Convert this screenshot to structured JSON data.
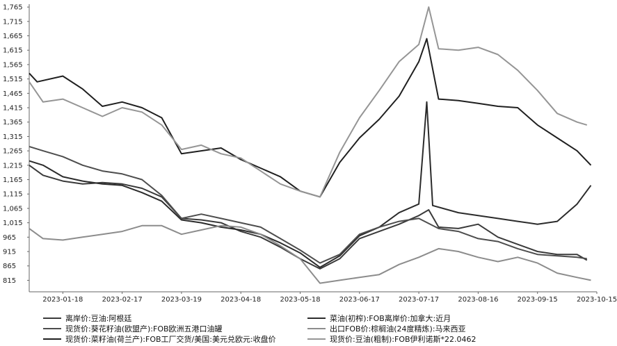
{
  "chart_data": {
    "type": "line",
    "title": "",
    "xlabel": "",
    "ylabel": "",
    "ylim": [
      775,
      1775
    ],
    "yticks": [
      815,
      865,
      915,
      965,
      1015,
      1065,
      1115,
      1165,
      1215,
      1265,
      1315,
      1365,
      1415,
      1465,
      1515,
      1565,
      1615,
      1665,
      1715,
      1765
    ],
    "ytick_labels": [
      "815",
      "865",
      "915",
      "965",
      "1,015",
      "1,065",
      "1,115",
      "1,165",
      "1,215",
      "1,265",
      "1,315",
      "1,365",
      "1,415",
      "1,465",
      "1,515",
      "1,565",
      "1,615",
      "1,665",
      "1,715",
      "1,765"
    ],
    "xlim": [
      "2023-01-01",
      "2023-10-15"
    ],
    "xticks": [
      "2023-01-18",
      "2023-02-17",
      "2023-03-19",
      "2023-04-18",
      "2023-05-18",
      "2023-06-17",
      "2023-07-17",
      "2023-08-16",
      "2023-09-15",
      "2023-10-15"
    ],
    "grid": false,
    "legend_position": "bottom",
    "series": [
      {
        "name": "离岸价:豆油:阿根廷",
        "color": "#3a3a3a",
        "points": [
          [
            "2023-01-01",
            1215
          ],
          [
            "2023-01-08",
            1180
          ],
          [
            "2023-01-18",
            1160
          ],
          [
            "2023-01-28",
            1150
          ],
          [
            "2023-02-07",
            1155
          ],
          [
            "2023-02-17",
            1150
          ],
          [
            "2023-02-27",
            1135
          ],
          [
            "2023-03-09",
            1105
          ],
          [
            "2023-03-19",
            1030
          ],
          [
            "2023-03-29",
            1025
          ],
          [
            "2023-04-08",
            1015
          ],
          [
            "2023-04-18",
            985
          ],
          [
            "2023-04-28",
            965
          ],
          [
            "2023-05-08",
            930
          ],
          [
            "2023-05-18",
            890
          ],
          [
            "2023-05-28",
            855
          ],
          [
            "2023-06-07",
            890
          ],
          [
            "2023-06-17",
            960
          ],
          [
            "2023-06-27",
            985
          ],
          [
            "2023-07-07",
            1010
          ],
          [
            "2023-07-17",
            1040
          ],
          [
            "2023-07-22",
            1060
          ],
          [
            "2023-07-27",
            1000
          ],
          [
            "2023-08-06",
            995
          ],
          [
            "2023-08-16",
            1010
          ],
          [
            "2023-08-26",
            965
          ],
          [
            "2023-09-05",
            940
          ],
          [
            "2023-09-15",
            915
          ],
          [
            "2023-09-25",
            905
          ],
          [
            "2023-10-05",
            905
          ],
          [
            "2023-10-10",
            885
          ]
        ]
      },
      {
        "name": "菜油(初榨):FOB离岸价:加拿大:近月",
        "color": "#2b2b2b",
        "points": [
          [
            "2023-01-01",
            1230
          ],
          [
            "2023-01-08",
            1215
          ],
          [
            "2023-01-18",
            1175
          ],
          [
            "2023-01-28",
            1160
          ],
          [
            "2023-02-07",
            1150
          ],
          [
            "2023-02-17",
            1145
          ],
          [
            "2023-02-27",
            1120
          ],
          [
            "2023-03-09",
            1090
          ],
          [
            "2023-03-19",
            1025
          ],
          [
            "2023-03-29",
            1015
          ],
          [
            "2023-04-08",
            1000
          ],
          [
            "2023-04-18",
            990
          ],
          [
            "2023-04-28",
            975
          ],
          [
            "2023-05-08",
            945
          ],
          [
            "2023-05-18",
            910
          ],
          [
            "2023-05-28",
            860
          ],
          [
            "2023-06-07",
            900
          ],
          [
            "2023-06-17",
            970
          ],
          [
            "2023-06-27",
            1000
          ],
          [
            "2023-07-07",
            1050
          ],
          [
            "2023-07-17",
            1080
          ],
          [
            "2023-07-21",
            1435
          ],
          [
            "2023-07-24",
            1075
          ],
          [
            "2023-08-06",
            1050
          ],
          [
            "2023-08-16",
            1040
          ],
          [
            "2023-08-26",
            1030
          ],
          [
            "2023-09-05",
            1020
          ],
          [
            "2023-09-15",
            1010
          ],
          [
            "2023-09-25",
            1020
          ],
          [
            "2023-10-05",
            1080
          ],
          [
            "2023-10-12",
            1145
          ]
        ]
      },
      {
        "name": "现货价:葵花籽油(欧盟产):FOB欧洲五港口油罐",
        "color": "#4d4d4d",
        "points": [
          [
            "2023-01-01",
            1280
          ],
          [
            "2023-01-08",
            1265
          ],
          [
            "2023-01-18",
            1245
          ],
          [
            "2023-01-28",
            1215
          ],
          [
            "2023-02-07",
            1195
          ],
          [
            "2023-02-17",
            1185
          ],
          [
            "2023-02-27",
            1165
          ],
          [
            "2023-03-09",
            1110
          ],
          [
            "2023-03-19",
            1030
          ],
          [
            "2023-03-29",
            1045
          ],
          [
            "2023-04-08",
            1030
          ],
          [
            "2023-04-18",
            1015
          ],
          [
            "2023-04-28",
            1000
          ],
          [
            "2023-05-08",
            960
          ],
          [
            "2023-05-18",
            920
          ],
          [
            "2023-05-28",
            875
          ],
          [
            "2023-06-07",
            905
          ],
          [
            "2023-06-17",
            975
          ],
          [
            "2023-06-27",
            1000
          ],
          [
            "2023-07-07",
            1020
          ],
          [
            "2023-07-17",
            1030
          ],
          [
            "2023-07-27",
            995
          ],
          [
            "2023-08-06",
            985
          ],
          [
            "2023-08-16",
            960
          ],
          [
            "2023-08-26",
            950
          ],
          [
            "2023-09-05",
            925
          ],
          [
            "2023-09-15",
            905
          ],
          [
            "2023-09-25",
            900
          ],
          [
            "2023-10-05",
            895
          ],
          [
            "2023-10-10",
            890
          ]
        ]
      },
      {
        "name": "出口FOB价:棕榈油(24度精炼):马来西亚",
        "color": "#8c8c8c",
        "points": [
          [
            "2023-01-01",
            995
          ],
          [
            "2023-01-08",
            960
          ],
          [
            "2023-01-18",
            955
          ],
          [
            "2023-01-28",
            965
          ],
          [
            "2023-02-07",
            975
          ],
          [
            "2023-02-17",
            985
          ],
          [
            "2023-02-27",
            1005
          ],
          [
            "2023-03-09",
            1005
          ],
          [
            "2023-03-19",
            975
          ],
          [
            "2023-03-29",
            990
          ],
          [
            "2023-04-08",
            1005
          ],
          [
            "2023-04-18",
            1000
          ],
          [
            "2023-04-28",
            975
          ],
          [
            "2023-05-08",
            935
          ],
          [
            "2023-05-18",
            890
          ],
          [
            "2023-05-28",
            805
          ],
          [
            "2023-06-07",
            815
          ],
          [
            "2023-06-17",
            825
          ],
          [
            "2023-06-27",
            835
          ],
          [
            "2023-07-07",
            870
          ],
          [
            "2023-07-17",
            895
          ],
          [
            "2023-07-27",
            925
          ],
          [
            "2023-08-06",
            915
          ],
          [
            "2023-08-16",
            895
          ],
          [
            "2023-08-26",
            880
          ],
          [
            "2023-09-05",
            895
          ],
          [
            "2023-09-15",
            875
          ],
          [
            "2023-09-25",
            840
          ],
          [
            "2023-10-05",
            825
          ],
          [
            "2023-10-12",
            815
          ]
        ]
      },
      {
        "name": "现货价:菜籽油(荷兰产):FOB工厂交货/美国:美元兑欧元:收盘价",
        "color": "#1f1f1f",
        "points": [
          [
            "2023-01-01",
            1535
          ],
          [
            "2023-01-05",
            1505
          ],
          [
            "2023-01-18",
            1525
          ],
          [
            "2023-01-28",
            1480
          ],
          [
            "2023-02-07",
            1420
          ],
          [
            "2023-02-17",
            1435
          ],
          [
            "2023-02-27",
            1415
          ],
          [
            "2023-03-09",
            1380
          ],
          [
            "2023-03-19",
            1255
          ],
          [
            "2023-03-29",
            1265
          ],
          [
            "2023-04-08",
            1275
          ],
          [
            "2023-04-18",
            1235
          ],
          [
            "2023-04-28",
            1205
          ],
          [
            "2023-05-08",
            1175
          ],
          [
            "2023-05-18",
            1125
          ],
          [
            "2023-05-28",
            1105
          ],
          [
            "2023-06-07",
            1225
          ],
          [
            "2023-06-17",
            1310
          ],
          [
            "2023-06-27",
            1375
          ],
          [
            "2023-07-07",
            1455
          ],
          [
            "2023-07-17",
            1575
          ],
          [
            "2023-07-21",
            1655
          ],
          [
            "2023-07-27",
            1445
          ],
          [
            "2023-08-06",
            1440
          ],
          [
            "2023-08-16",
            1430
          ],
          [
            "2023-08-26",
            1420
          ],
          [
            "2023-09-05",
            1415
          ],
          [
            "2023-09-15",
            1355
          ],
          [
            "2023-09-25",
            1310
          ],
          [
            "2023-10-05",
            1265
          ],
          [
            "2023-10-12",
            1215
          ]
        ]
      },
      {
        "name": "现货价:豆油(粗制):FOB伊利诺斯*22.0462",
        "color": "#959595",
        "points": [
          [
            "2023-01-01",
            1505
          ],
          [
            "2023-01-08",
            1435
          ],
          [
            "2023-01-18",
            1445
          ],
          [
            "2023-01-28",
            1415
          ],
          [
            "2023-02-07",
            1385
          ],
          [
            "2023-02-17",
            1415
          ],
          [
            "2023-02-27",
            1400
          ],
          [
            "2023-03-09",
            1355
          ],
          [
            "2023-03-19",
            1270
          ],
          [
            "2023-03-29",
            1285
          ],
          [
            "2023-04-08",
            1255
          ],
          [
            "2023-04-18",
            1240
          ],
          [
            "2023-04-28",
            1195
          ],
          [
            "2023-05-08",
            1150
          ],
          [
            "2023-05-18",
            1125
          ],
          [
            "2023-05-28",
            1105
          ],
          [
            "2023-06-07",
            1260
          ],
          [
            "2023-06-17",
            1380
          ],
          [
            "2023-06-27",
            1475
          ],
          [
            "2023-07-07",
            1575
          ],
          [
            "2023-07-17",
            1635
          ],
          [
            "2023-07-22",
            1765
          ],
          [
            "2023-07-27",
            1620
          ],
          [
            "2023-08-06",
            1615
          ],
          [
            "2023-08-16",
            1625
          ],
          [
            "2023-08-26",
            1600
          ],
          [
            "2023-09-05",
            1545
          ],
          [
            "2023-09-15",
            1475
          ],
          [
            "2023-09-25",
            1395
          ],
          [
            "2023-10-05",
            1365
          ],
          [
            "2023-10-10",
            1355
          ]
        ]
      }
    ]
  }
}
